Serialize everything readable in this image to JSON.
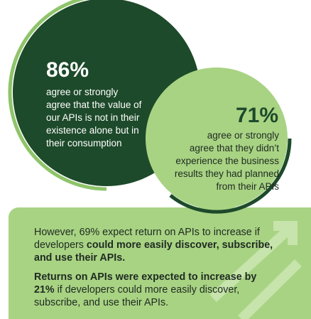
{
  "stat_left": {
    "figure": "86%",
    "lines": [
      "agree or strongly",
      "agree that the value of",
      "our APIs is not in their",
      "existence alone but in",
      "their consumption"
    ]
  },
  "stat_right": {
    "figure": "71%",
    "lines": [
      "agree or strongly",
      "agree that they didn’t",
      "experience the business",
      "results they had planned",
      "from their APIs"
    ]
  },
  "callout": {
    "paragraphs": [
      [
        "However, 69% expect return on APIs to increase if developers ",
        "could more easily discover, subscribe, and use their APIs."
      ],
      [
        "Returns on APIs were expected to increase by 21%",
        " if developers could more easily discover, subscribe, and use their APIs."
      ]
    ]
  }
}
